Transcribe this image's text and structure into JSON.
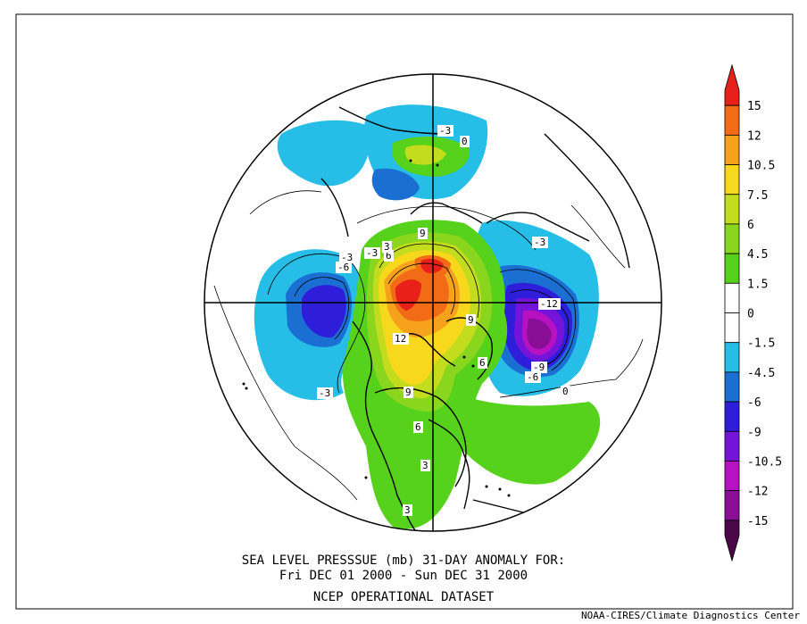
{
  "caption": {
    "line1": "SEA LEVEL PRESSSUE (mb)   31-DAY ANOMALY FOR:",
    "line2": "Fri DEC 01 2000 - Sun DEC 31 2000",
    "line3": "NCEP OPERATIONAL DATASET"
  },
  "credit": "NOAA-CIRES/Climate Diagnostics Center",
  "legend": {
    "items": [
      {
        "label": "15",
        "color": "#e8201a"
      },
      {
        "label": "12",
        "color": "#f26b16"
      },
      {
        "label": "10.5",
        "color": "#f6a21c"
      },
      {
        "label": "7.5",
        "color": "#f7d81c"
      },
      {
        "label": "6",
        "color": "#c4dc1e"
      },
      {
        "label": "4.5",
        "color": "#8ad61e"
      },
      {
        "label": "1.5",
        "color": "#56d11c"
      },
      {
        "label": "0",
        "color": "#ffffff"
      },
      {
        "label": "-1.5",
        "color": "#ffffff"
      },
      {
        "label": "-4.5",
        "color": "#26bee6"
      },
      {
        "label": "-6",
        "color": "#1b6fd3"
      },
      {
        "label": "-9",
        "color": "#2f1ed9"
      },
      {
        "label": "-10.5",
        "color": "#7414d8"
      },
      {
        "label": "-12",
        "color": "#b711c2"
      },
      {
        "label": "-15",
        "color": "#8a0e95"
      },
      {
        "label": "",
        "color": "#4a0848"
      }
    ]
  },
  "map_labels": [
    {
      "text": "-3"
    },
    {
      "text": "-6"
    },
    {
      "text": "-3"
    },
    {
      "text": "6"
    },
    {
      "text": "3"
    },
    {
      "text": "9"
    },
    {
      "text": "12"
    },
    {
      "text": "9"
    },
    {
      "text": "9"
    },
    {
      "text": "6"
    },
    {
      "text": "-12"
    },
    {
      "text": "-9"
    },
    {
      "text": "-6"
    },
    {
      "text": "-3"
    },
    {
      "text": "6"
    },
    {
      "text": "3"
    },
    {
      "text": "3"
    },
    {
      "text": "-3"
    },
    {
      "text": "0"
    },
    {
      "text": "-3"
    },
    {
      "text": "0"
    }
  ]
}
